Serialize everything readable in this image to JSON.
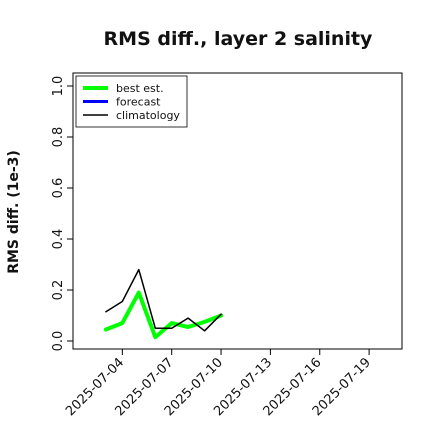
{
  "chart_data": {
    "type": "line",
    "title": "RMS diff., layer 2 salinity",
    "xlabel": "",
    "ylabel": "RMS diff. (1e-3)",
    "ylim": [
      0.0,
      1.0
    ],
    "yticks": [
      "0.0",
      "0.2",
      "0.4",
      "0.6",
      "0.8",
      "1.0"
    ],
    "xlim": [
      "2025-07-01",
      "2025-07-21"
    ],
    "xticks": [
      "2025-07-04",
      "2025-07-07",
      "2025-07-10",
      "2025-07-13",
      "2025-07-16",
      "2025-07-19"
    ],
    "highlight_tick": "2025-07-10",
    "highlight_color": "#2e8b2e",
    "legend_position": "upper left",
    "series": [
      {
        "name": "best est.",
        "color": "#00ff00",
        "x": [
          "2025-07-03",
          "2025-07-04",
          "2025-07-05",
          "2025-07-06",
          "2025-07-07",
          "2025-07-08",
          "2025-07-09",
          "2025-07-10"
        ],
        "values": [
          0.045,
          0.07,
          0.19,
          0.015,
          0.07,
          0.055,
          0.075,
          0.1
        ]
      },
      {
        "name": "forecast",
        "color": "#0000ff",
        "x": [],
        "values": []
      },
      {
        "name": "climatology",
        "color": "#000000",
        "x": [
          "2025-07-03",
          "2025-07-04",
          "2025-07-05",
          "2025-07-06",
          "2025-07-07",
          "2025-07-08",
          "2025-07-09",
          "2025-07-10"
        ],
        "values": [
          0.115,
          0.155,
          0.28,
          0.05,
          0.05,
          0.09,
          0.04,
          0.105
        ]
      }
    ]
  }
}
